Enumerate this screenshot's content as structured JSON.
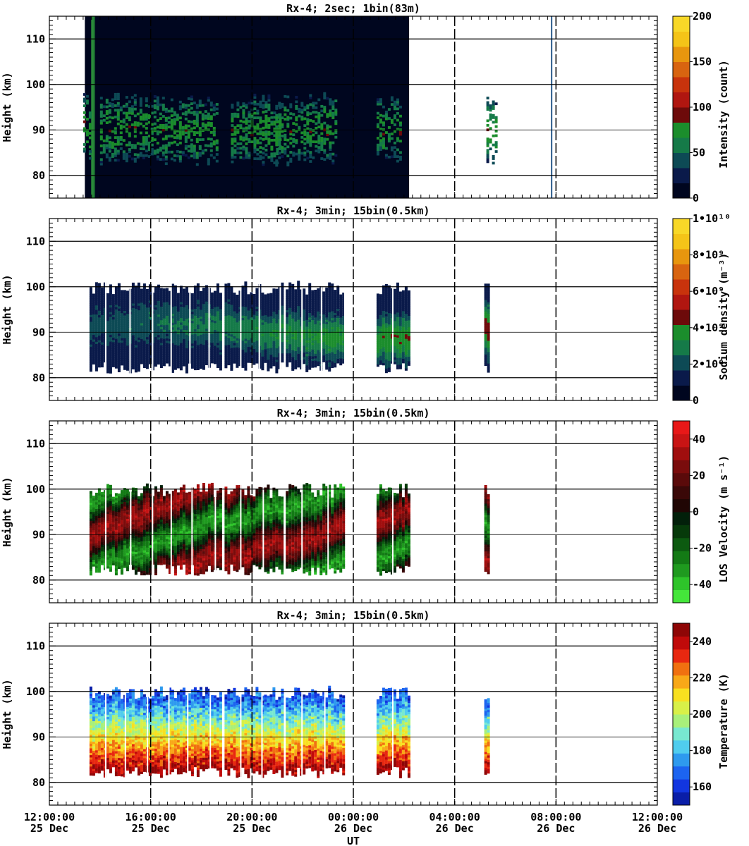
{
  "chart_data": [
    {
      "type": "heatmap",
      "title": "Rx-4;  2sec; 1bin(83m)",
      "ylabel": "Height (km)",
      "ylim": [
        75,
        115
      ],
      "yticks": [
        "80",
        "90",
        "100",
        "110"
      ],
      "colorbar": {
        "label": "Intensity (count)",
        "ticks": [
          "0",
          "50",
          "100",
          "150",
          "200"
        ],
        "range": [
          0,
          200
        ],
        "colors": [
          "#00061f",
          "#0a1a4a",
          "#0d4a55",
          "#157a48",
          "#1b8d2c",
          "#6d0a0a",
          "#b01610",
          "#c8330c",
          "#d86410",
          "#e8960e",
          "#f4c418",
          "#f8d828"
        ]
      },
      "data_span_ut": [
        "13:10",
        "23:00"
      ],
      "observed_windows_ut": [
        [
          "13:20",
          "13:35"
        ],
        [
          "14:00",
          "18:40"
        ],
        [
          "19:10",
          "21:05"
        ],
        [
          "20:55",
          "23:20"
        ],
        [
          "00:55",
          "01:55"
        ],
        [
          "05:15",
          "05:40"
        ]
      ],
      "layer_km": [
        82,
        98
      ]
    },
    {
      "type": "heatmap",
      "title": "Rx-4; 3min; 15bin(0.5km)",
      "ylabel": "Height (km)",
      "ylim": [
        75,
        115
      ],
      "yticks": [
        "80",
        "90",
        "100",
        "110"
      ],
      "colorbar": {
        "label": "Sodium density (m⁻³)",
        "ticks": [
          "0",
          "2•10⁹",
          "4•10⁹",
          "6•10⁹",
          "8•10⁹",
          "1•10¹⁰"
        ],
        "range": [
          0,
          10000000000
        ],
        "colors": [
          "#00061f",
          "#0a1a4a",
          "#0d4a55",
          "#157a48",
          "#1b8d2c",
          "#6d0a0a",
          "#b01610",
          "#c8330c",
          "#d86410",
          "#e8960e",
          "#f4c418",
          "#f8d828"
        ]
      },
      "observed_windows_ut": [
        [
          "13:35",
          "18:45"
        ],
        [
          "18:55",
          "21:15"
        ],
        [
          "21:20",
          "23:40"
        ],
        [
          "00:55",
          "02:10"
        ],
        [
          "05:10",
          "05:20"
        ]
      ],
      "layer_km": [
        81,
        101
      ]
    },
    {
      "type": "heatmap",
      "title": "Rx-4; 3min; 15bin(0.5km)",
      "ylabel": "Height (km)",
      "ylim": [
        75,
        115
      ],
      "yticks": [
        "80",
        "90",
        "100",
        "110"
      ],
      "colorbar": {
        "label": "LOS Velocity (m s⁻¹)",
        "ticks": [
          "-40",
          "-20",
          "0",
          "20",
          "40"
        ],
        "range": [
          -50,
          50
        ],
        "colors": [
          "#44e63a",
          "#2ec42a",
          "#1f9a1f",
          "#137a15",
          "#0c5a10",
          "#063a0a",
          "#02200a",
          "#200604",
          "#3a0808",
          "#5a0a0a",
          "#7a0c0c",
          "#a00e0e",
          "#c81414",
          "#e81818"
        ]
      },
      "observed_windows_ut": [
        [
          "13:35",
          "18:45"
        ],
        [
          "18:55",
          "21:15"
        ],
        [
          "21:20",
          "23:40"
        ],
        [
          "00:55",
          "02:10"
        ],
        [
          "05:10",
          "05:20"
        ]
      ],
      "layer_km": [
        81,
        101
      ]
    },
    {
      "type": "heatmap",
      "title": "Rx-4; 3min; 15bin(0.5km)",
      "ylabel": "Height (km)",
      "ylim": [
        75,
        115
      ],
      "yticks": [
        "80",
        "90",
        "100",
        "110"
      ],
      "xlabel": "UT",
      "xticks": [
        {
          "time": "12:00:00",
          "date": "25 Dec"
        },
        {
          "time": "16:00:00",
          "date": "25 Dec"
        },
        {
          "time": "20:00:00",
          "date": "25 Dec"
        },
        {
          "time": "00:00:00",
          "date": "26 Dec"
        },
        {
          "time": "04:00:00",
          "date": "26 Dec"
        },
        {
          "time": "08:00:00",
          "date": "26 Dec"
        },
        {
          "time": "12:00:00",
          "date": "26 Dec"
        }
      ],
      "colorbar": {
        "label": "Temperature (K)",
        "ticks": [
          "160",
          "180",
          "200",
          "220",
          "240"
        ],
        "range": [
          150,
          250
        ],
        "colors": [
          "#0a1ea8",
          "#1236e0",
          "#1c64f0",
          "#2e9aee",
          "#50cdee",
          "#78e8d0",
          "#a8f07a",
          "#d8f048",
          "#f8e020",
          "#f8a818",
          "#f07010",
          "#e82810",
          "#c00a0a",
          "#8e0606"
        ]
      },
      "observed_windows_ut": [
        [
          "13:35",
          "18:45"
        ],
        [
          "18:55",
          "21:15"
        ],
        [
          "21:20",
          "23:40"
        ],
        [
          "00:55",
          "02:10"
        ],
        [
          "05:10",
          "05:20"
        ]
      ],
      "layer_km": [
        81,
        101
      ]
    }
  ]
}
